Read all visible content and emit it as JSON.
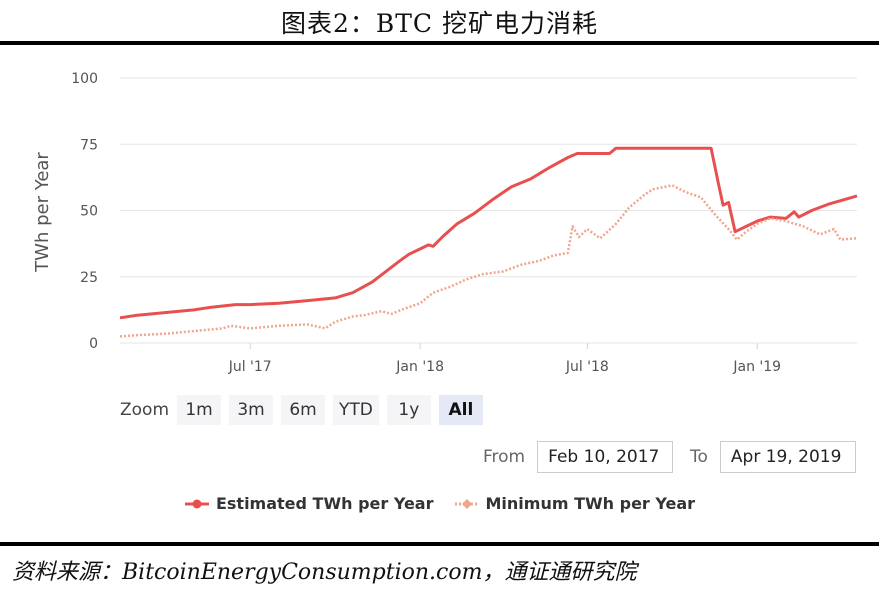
{
  "figure_title": "图表2：BTC 挖矿电力消耗",
  "source_text": "资料来源：BitcoinEnergyConsumption.com，通证通研究院",
  "colors": {
    "estimated": "#e8504f",
    "minimum": "#f0a58e",
    "grid": "#e6e6e6"
  },
  "zoom": {
    "label": "Zoom",
    "buttons": [
      {
        "label": "1m",
        "active": false
      },
      {
        "label": "3m",
        "active": false
      },
      {
        "label": "6m",
        "active": false
      },
      {
        "label": "YTD",
        "active": false
      },
      {
        "label": "1y",
        "active": false
      },
      {
        "label": "All",
        "active": true
      }
    ]
  },
  "range": {
    "from_label": "From",
    "from_value": "Feb 10, 2017",
    "to_label": "To",
    "to_value": "Apr 19, 2019"
  },
  "chart_data": {
    "type": "line",
    "title": "",
    "xlabel": "",
    "ylabel": "TWh per Year",
    "ylim": [
      0,
      100
    ],
    "yticks": [
      0,
      25,
      50,
      75,
      100
    ],
    "xlim": [
      "2017-02-10",
      "2019-04-19"
    ],
    "xticks": [
      {
        "date": "2017-07-01",
        "label": "Jul '17"
      },
      {
        "date": "2018-01-01",
        "label": "Jan '18"
      },
      {
        "date": "2018-07-01",
        "label": "Jul '18"
      },
      {
        "date": "2019-01-01",
        "label": "Jan '19"
      }
    ],
    "grid": true,
    "legend_position": "bottom",
    "series": [
      {
        "name": "Estimated TWh per Year",
        "style": "solid",
        "points": [
          [
            "2017-02-10",
            9.5
          ],
          [
            "2017-03-01",
            10.5
          ],
          [
            "2017-04-01",
            11.5
          ],
          [
            "2017-05-01",
            12.5
          ],
          [
            "2017-05-20",
            13.5
          ],
          [
            "2017-06-15",
            14.5
          ],
          [
            "2017-07-01",
            14.5
          ],
          [
            "2017-08-01",
            15.0
          ],
          [
            "2017-09-01",
            16.0
          ],
          [
            "2017-10-01",
            17.0
          ],
          [
            "2017-10-20",
            19.0
          ],
          [
            "2017-11-10",
            23.0
          ],
          [
            "2017-11-25",
            27.0
          ],
          [
            "2017-12-10",
            31.0
          ],
          [
            "2017-12-20",
            33.5
          ],
          [
            "2018-01-01",
            35.5
          ],
          [
            "2018-01-10",
            37.0
          ],
          [
            "2018-01-15",
            36.5
          ],
          [
            "2018-01-25",
            40.0
          ],
          [
            "2018-02-10",
            45.0
          ],
          [
            "2018-03-01",
            49.0
          ],
          [
            "2018-03-20",
            54.0
          ],
          [
            "2018-04-10",
            59.0
          ],
          [
            "2018-05-01",
            62.0
          ],
          [
            "2018-05-20",
            66.0
          ],
          [
            "2018-06-10",
            70.0
          ],
          [
            "2018-06-20",
            71.5
          ],
          [
            "2018-07-10",
            71.5
          ],
          [
            "2018-07-25",
            71.5
          ],
          [
            "2018-08-01",
            73.5
          ],
          [
            "2018-09-01",
            73.5
          ],
          [
            "2018-10-01",
            73.5
          ],
          [
            "2018-11-01",
            73.5
          ],
          [
            "2018-11-12",
            73.5
          ],
          [
            "2018-11-20",
            60.0
          ],
          [
            "2018-11-25",
            52.0
          ],
          [
            "2018-12-01",
            53.0
          ],
          [
            "2018-12-08",
            42.0
          ],
          [
            "2018-12-20",
            44.0
          ],
          [
            "2019-01-01",
            46.0
          ],
          [
            "2019-01-15",
            47.5
          ],
          [
            "2019-02-01",
            47.0
          ],
          [
            "2019-02-10",
            49.5
          ],
          [
            "2019-02-15",
            47.5
          ],
          [
            "2019-03-01",
            50.0
          ],
          [
            "2019-03-20",
            52.5
          ],
          [
            "2019-04-19",
            55.5
          ]
        ]
      },
      {
        "name": "Minimum TWh per Year",
        "style": "dashed",
        "points": [
          [
            "2017-02-10",
            2.5
          ],
          [
            "2017-03-01",
            3.0
          ],
          [
            "2017-04-01",
            3.5
          ],
          [
            "2017-05-01",
            4.5
          ],
          [
            "2017-06-01",
            5.5
          ],
          [
            "2017-06-10",
            6.5
          ],
          [
            "2017-07-01",
            5.5
          ],
          [
            "2017-08-01",
            6.5
          ],
          [
            "2017-09-01",
            7.0
          ],
          [
            "2017-09-20",
            5.5
          ],
          [
            "2017-10-01",
            8.0
          ],
          [
            "2017-10-20",
            10.0
          ],
          [
            "2017-11-01",
            10.5
          ],
          [
            "2017-11-20",
            12.0
          ],
          [
            "2017-12-01",
            11.0
          ],
          [
            "2017-12-15",
            13.0
          ],
          [
            "2018-01-01",
            15.0
          ],
          [
            "2018-01-15",
            19.0
          ],
          [
            "2018-02-01",
            21.0
          ],
          [
            "2018-02-20",
            24.0
          ],
          [
            "2018-03-10",
            26.0
          ],
          [
            "2018-04-01",
            27.0
          ],
          [
            "2018-04-20",
            29.5
          ],
          [
            "2018-05-10",
            31.0
          ],
          [
            "2018-05-25",
            33.0
          ],
          [
            "2018-06-10",
            34.0
          ],
          [
            "2018-06-15",
            44.0
          ],
          [
            "2018-06-22",
            40.0
          ],
          [
            "2018-07-01",
            43.0
          ],
          [
            "2018-07-15",
            39.5
          ],
          [
            "2018-08-01",
            45.0
          ],
          [
            "2018-08-15",
            51.0
          ],
          [
            "2018-09-01",
            56.0
          ],
          [
            "2018-09-10",
            58.0
          ],
          [
            "2018-10-01",
            59.5
          ],
          [
            "2018-10-15",
            57.0
          ],
          [
            "2018-11-01",
            55.0
          ],
          [
            "2018-11-15",
            49.0
          ],
          [
            "2018-12-01",
            43.0
          ],
          [
            "2018-12-10",
            39.0
          ],
          [
            "2018-12-20",
            42.0
          ],
          [
            "2019-01-01",
            45.0
          ],
          [
            "2019-01-15",
            47.0
          ],
          [
            "2019-02-01",
            46.0
          ],
          [
            "2019-02-20",
            44.0
          ],
          [
            "2019-03-10",
            41.0
          ],
          [
            "2019-03-25",
            43.0
          ],
          [
            "2019-04-01",
            39.0
          ],
          [
            "2019-04-19",
            39.5
          ]
        ]
      }
    ]
  }
}
